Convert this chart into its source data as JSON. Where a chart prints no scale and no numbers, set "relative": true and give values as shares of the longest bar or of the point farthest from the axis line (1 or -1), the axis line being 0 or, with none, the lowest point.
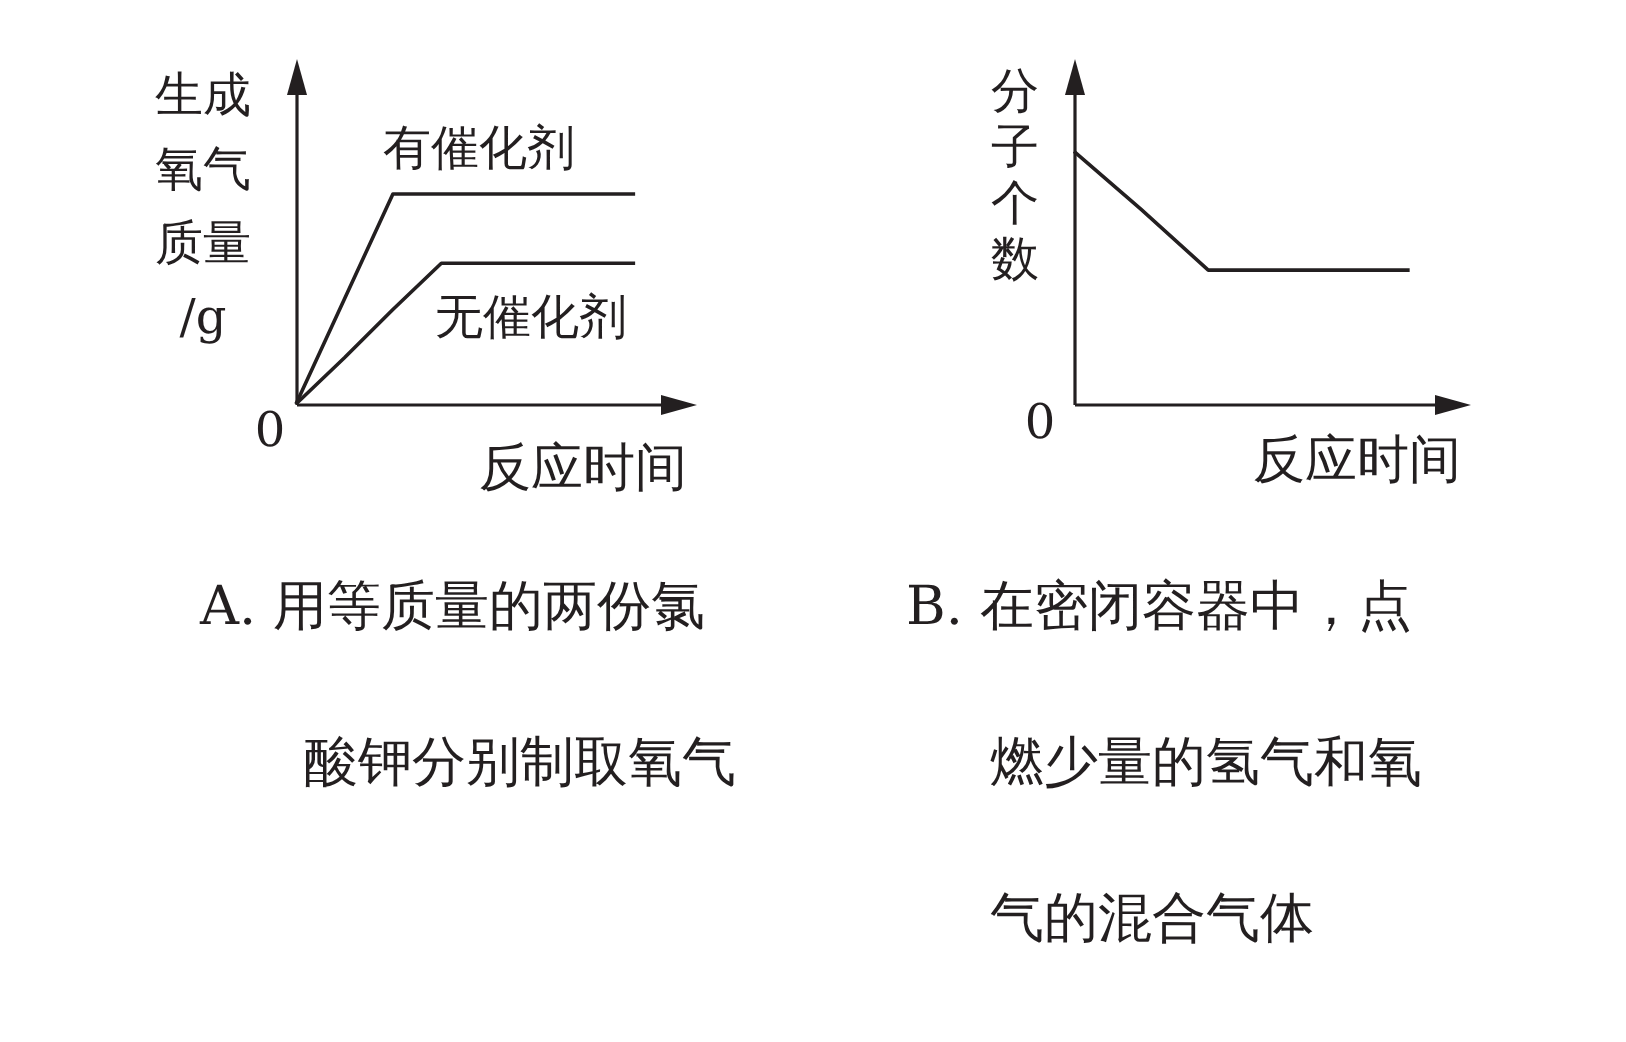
{
  "chart_data": [
    {
      "type": "line",
      "title": "A. 用等质量的两份氯酸钾分别制取氧气",
      "xlabel": "反应时间",
      "ylabel": "生成氧气质量/g",
      "relative": true,
      "annotations": [
        "0"
      ],
      "categories": [
        null,
        null,
        null,
        null,
        null,
        null,
        null,
        null
      ],
      "series": [
        {
          "name": "有催化剂",
          "color": "#231f20",
          "values": [
            0,
            0.5,
            1,
            1,
            1,
            1,
            1,
            1
          ]
        },
        {
          "name": "无催化剂",
          "color": "#231f20",
          "values": [
            0,
            0.22,
            0.45,
            0.67,
            0.67,
            0.67,
            0.67,
            0.67
          ]
        }
      ]
    },
    {
      "type": "line",
      "title": "B. 在密闭容器中，点燃少量的氢气和氧气的混合气体",
      "xlabel": "反应时间",
      "ylabel": "分子个数",
      "relative": true,
      "annotations": [
        "0"
      ],
      "categories": [
        null,
        null,
        null,
        null,
        null,
        null
      ],
      "color": "#231f20",
      "values": [
        1,
        0.77,
        0.53,
        0.53,
        0.53,
        0.53
      ]
    }
  ]
}
